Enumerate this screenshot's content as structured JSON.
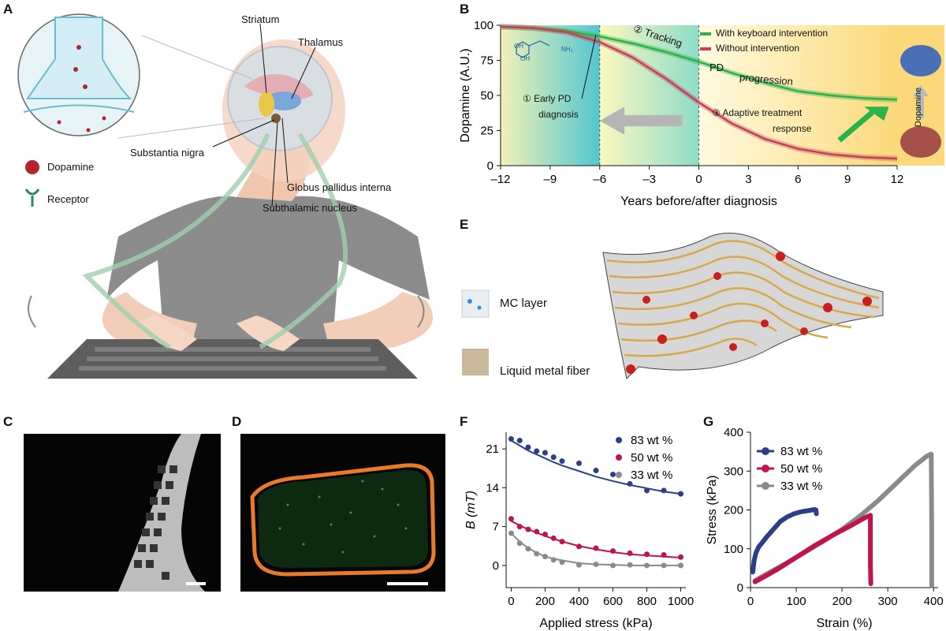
{
  "panels": {
    "A": "A",
    "B": "B",
    "C": "C",
    "D": "D",
    "E": "E",
    "F": "F",
    "G": "G"
  },
  "panel_a": {
    "labels": {
      "striatum": "Striatum",
      "thalamus": "Thalamus",
      "substantia_nigra": "Substantia nigra",
      "globus_pallidus": "Globus pallidus interna",
      "subthalamic": "Subthalamic nucleus"
    },
    "legend": {
      "dopamine": "Dopamine",
      "receptor": "Receptor"
    },
    "colors": {
      "dopamine": "#b3262a",
      "receptor": "#2e8b57",
      "shirt": "#8c8c8c",
      "skin": "#f2cdb8"
    }
  },
  "panel_b": {
    "legend": {
      "with": "With keyboard intervention",
      "without": "Without intervention",
      "with_color": "#2db24a",
      "without_color": "#c2425a"
    },
    "annotations": {
      "early_1": "① Early PD",
      "early_2": "diagnosis",
      "tracking": "② Tracking",
      "pd": "PD",
      "progression": "progression",
      "adaptive_1": "③ Adaptive treatment",
      "adaptive_2": "response",
      "dopamine_side": "Dopamine",
      "molecule_oh1": "OH",
      "molecule_oh2": "OH",
      "molecule_nh2": "NH₂"
    }
  },
  "panel_e": {
    "mc_layer": "MC layer",
    "liquid_metal": "Liquid metal fiber"
  },
  "chart_data": [
    {
      "id": "B",
      "type": "line",
      "title": "",
      "xlabel": "Years before/after diagnosis",
      "ylabel": "Dopamine (A.U.)",
      "xlim": [
        -12,
        12
      ],
      "ylim": [
        0,
        100
      ],
      "xticks": [
        -12,
        -9,
        -6,
        -3,
        0,
        3,
        6,
        9,
        12
      ],
      "xtick_labels": [
        "–12",
        "–9",
        "–6",
        "–3",
        "0",
        "3",
        "6",
        "9",
        "12"
      ],
      "yticks": [
        0,
        25,
        50,
        75,
        100
      ],
      "series": [
        {
          "name": "With keyboard intervention",
          "x": [
            -12,
            -10,
            -8,
            -6,
            -4,
            -2,
            0,
            2,
            4,
            6,
            8,
            10,
            12
          ],
          "y": [
            99,
            98,
            96,
            92,
            87,
            81,
            74,
            66,
            59,
            53,
            50,
            48,
            47
          ]
        },
        {
          "name": "Without intervention",
          "x": [
            -12,
            -10,
            -8,
            -6,
            -4,
            -2,
            0,
            2,
            4,
            6,
            8,
            10,
            12
          ],
          "y": [
            99,
            98,
            95,
            88,
            77,
            62,
            45,
            30,
            19,
            12,
            8,
            6,
            5
          ]
        }
      ],
      "regions": [
        {
          "from": -12,
          "to": -6,
          "label": "early"
        },
        {
          "from": -6,
          "to": 0,
          "label": "tracking"
        },
        {
          "from": 0,
          "to": 12,
          "label": "adaptive"
        }
      ]
    },
    {
      "id": "F",
      "type": "scatter",
      "xlabel": "Applied stress (kPa)",
      "ylabel": "B (mT)",
      "xlim": [
        -30,
        1030
      ],
      "ylim": [
        -4,
        24
      ],
      "xticks": [
        0,
        200,
        400,
        600,
        800,
        1000
      ],
      "yticks": [
        0,
        7,
        14,
        21
      ],
      "series": [
        {
          "name": "83 wt %",
          "color": "#2b3f86",
          "x": [
            0,
            50,
            100,
            150,
            200,
            250,
            300,
            400,
            500,
            600,
            700,
            800,
            900,
            1000
          ],
          "y": [
            22.8,
            22.5,
            21.3,
            20.6,
            20.3,
            19.5,
            18.8,
            18.4,
            17.1,
            16.4,
            14.7,
            13.5,
            13.5,
            12.9
          ],
          "fit": [
            22.5,
            21.6,
            20.7,
            20.0,
            19.3,
            18.6,
            18.0,
            17.0,
            16.0,
            15.2,
            14.5,
            13.9,
            13.3,
            12.9
          ]
        },
        {
          "name": "50 wt %",
          "color": "#c0144a",
          "x": [
            0,
            50,
            100,
            150,
            200,
            250,
            300,
            400,
            500,
            600,
            700,
            800,
            900,
            1000
          ],
          "y": [
            8.4,
            7.0,
            6.5,
            6.1,
            5.6,
            4.9,
            4.3,
            3.4,
            3.1,
            2.6,
            2.2,
            2.0,
            1.9,
            1.5
          ],
          "fit": [
            8.0,
            7.2,
            6.5,
            5.9,
            5.3,
            4.8,
            4.3,
            3.5,
            2.9,
            2.4,
            2.0,
            1.8,
            1.6,
            1.4
          ]
        },
        {
          "name": "33 wt %",
          "color": "#8a8a8a",
          "x": [
            0,
            50,
            100,
            150,
            200,
            250,
            300,
            400,
            500,
            600,
            700,
            800,
            900,
            1000
          ],
          "y": [
            5.8,
            4.0,
            3.0,
            2.1,
            1.6,
            1.0,
            0.6,
            0.1,
            0.2,
            0.0,
            0.1,
            0.0,
            0.0,
            0.0
          ],
          "fit": [
            5.8,
            4.3,
            3.1,
            2.3,
            1.6,
            1.2,
            0.9,
            0.4,
            0.2,
            0.1,
            0.0,
            0.0,
            0.0,
            0.0
          ]
        }
      ]
    },
    {
      "id": "G",
      "type": "line",
      "xlabel": "Strain (%)",
      "ylabel": "Stress (kPa)",
      "xlim": [
        0,
        410
      ],
      "ylim": [
        0,
        400
      ],
      "xticks": [
        0,
        100,
        200,
        300,
        400
      ],
      "yticks": [
        0,
        100,
        200,
        300,
        400
      ],
      "series": [
        {
          "name": "83 wt %",
          "color": "#2b3f86",
          "x": [
            5,
            8,
            12,
            18,
            25,
            35,
            50,
            65,
            80,
            95,
            110,
            125,
            135,
            140,
            143,
            144
          ],
          "y": [
            40,
            70,
            90,
            105,
            115,
            130,
            150,
            170,
            182,
            190,
            195,
            198,
            200,
            201,
            200,
            190
          ]
        },
        {
          "name": "50 wt %",
          "color": "#c0144a",
          "x": [
            10,
            30,
            60,
            100,
            140,
            180,
            220,
            250,
            262,
            262,
            263
          ],
          "y": [
            15,
            28,
            48,
            78,
            108,
            135,
            160,
            180,
            186,
            60,
            10
          ]
        },
        {
          "name": "33 wt %",
          "color": "#8a8a8a",
          "x": [
            10,
            40,
            80,
            120,
            160,
            200,
            240,
            280,
            320,
            360,
            385,
            395,
            396,
            396
          ],
          "y": [
            18,
            38,
            64,
            92,
            120,
            150,
            185,
            225,
            270,
            315,
            338,
            344,
            150,
            5
          ]
        }
      ]
    }
  ]
}
